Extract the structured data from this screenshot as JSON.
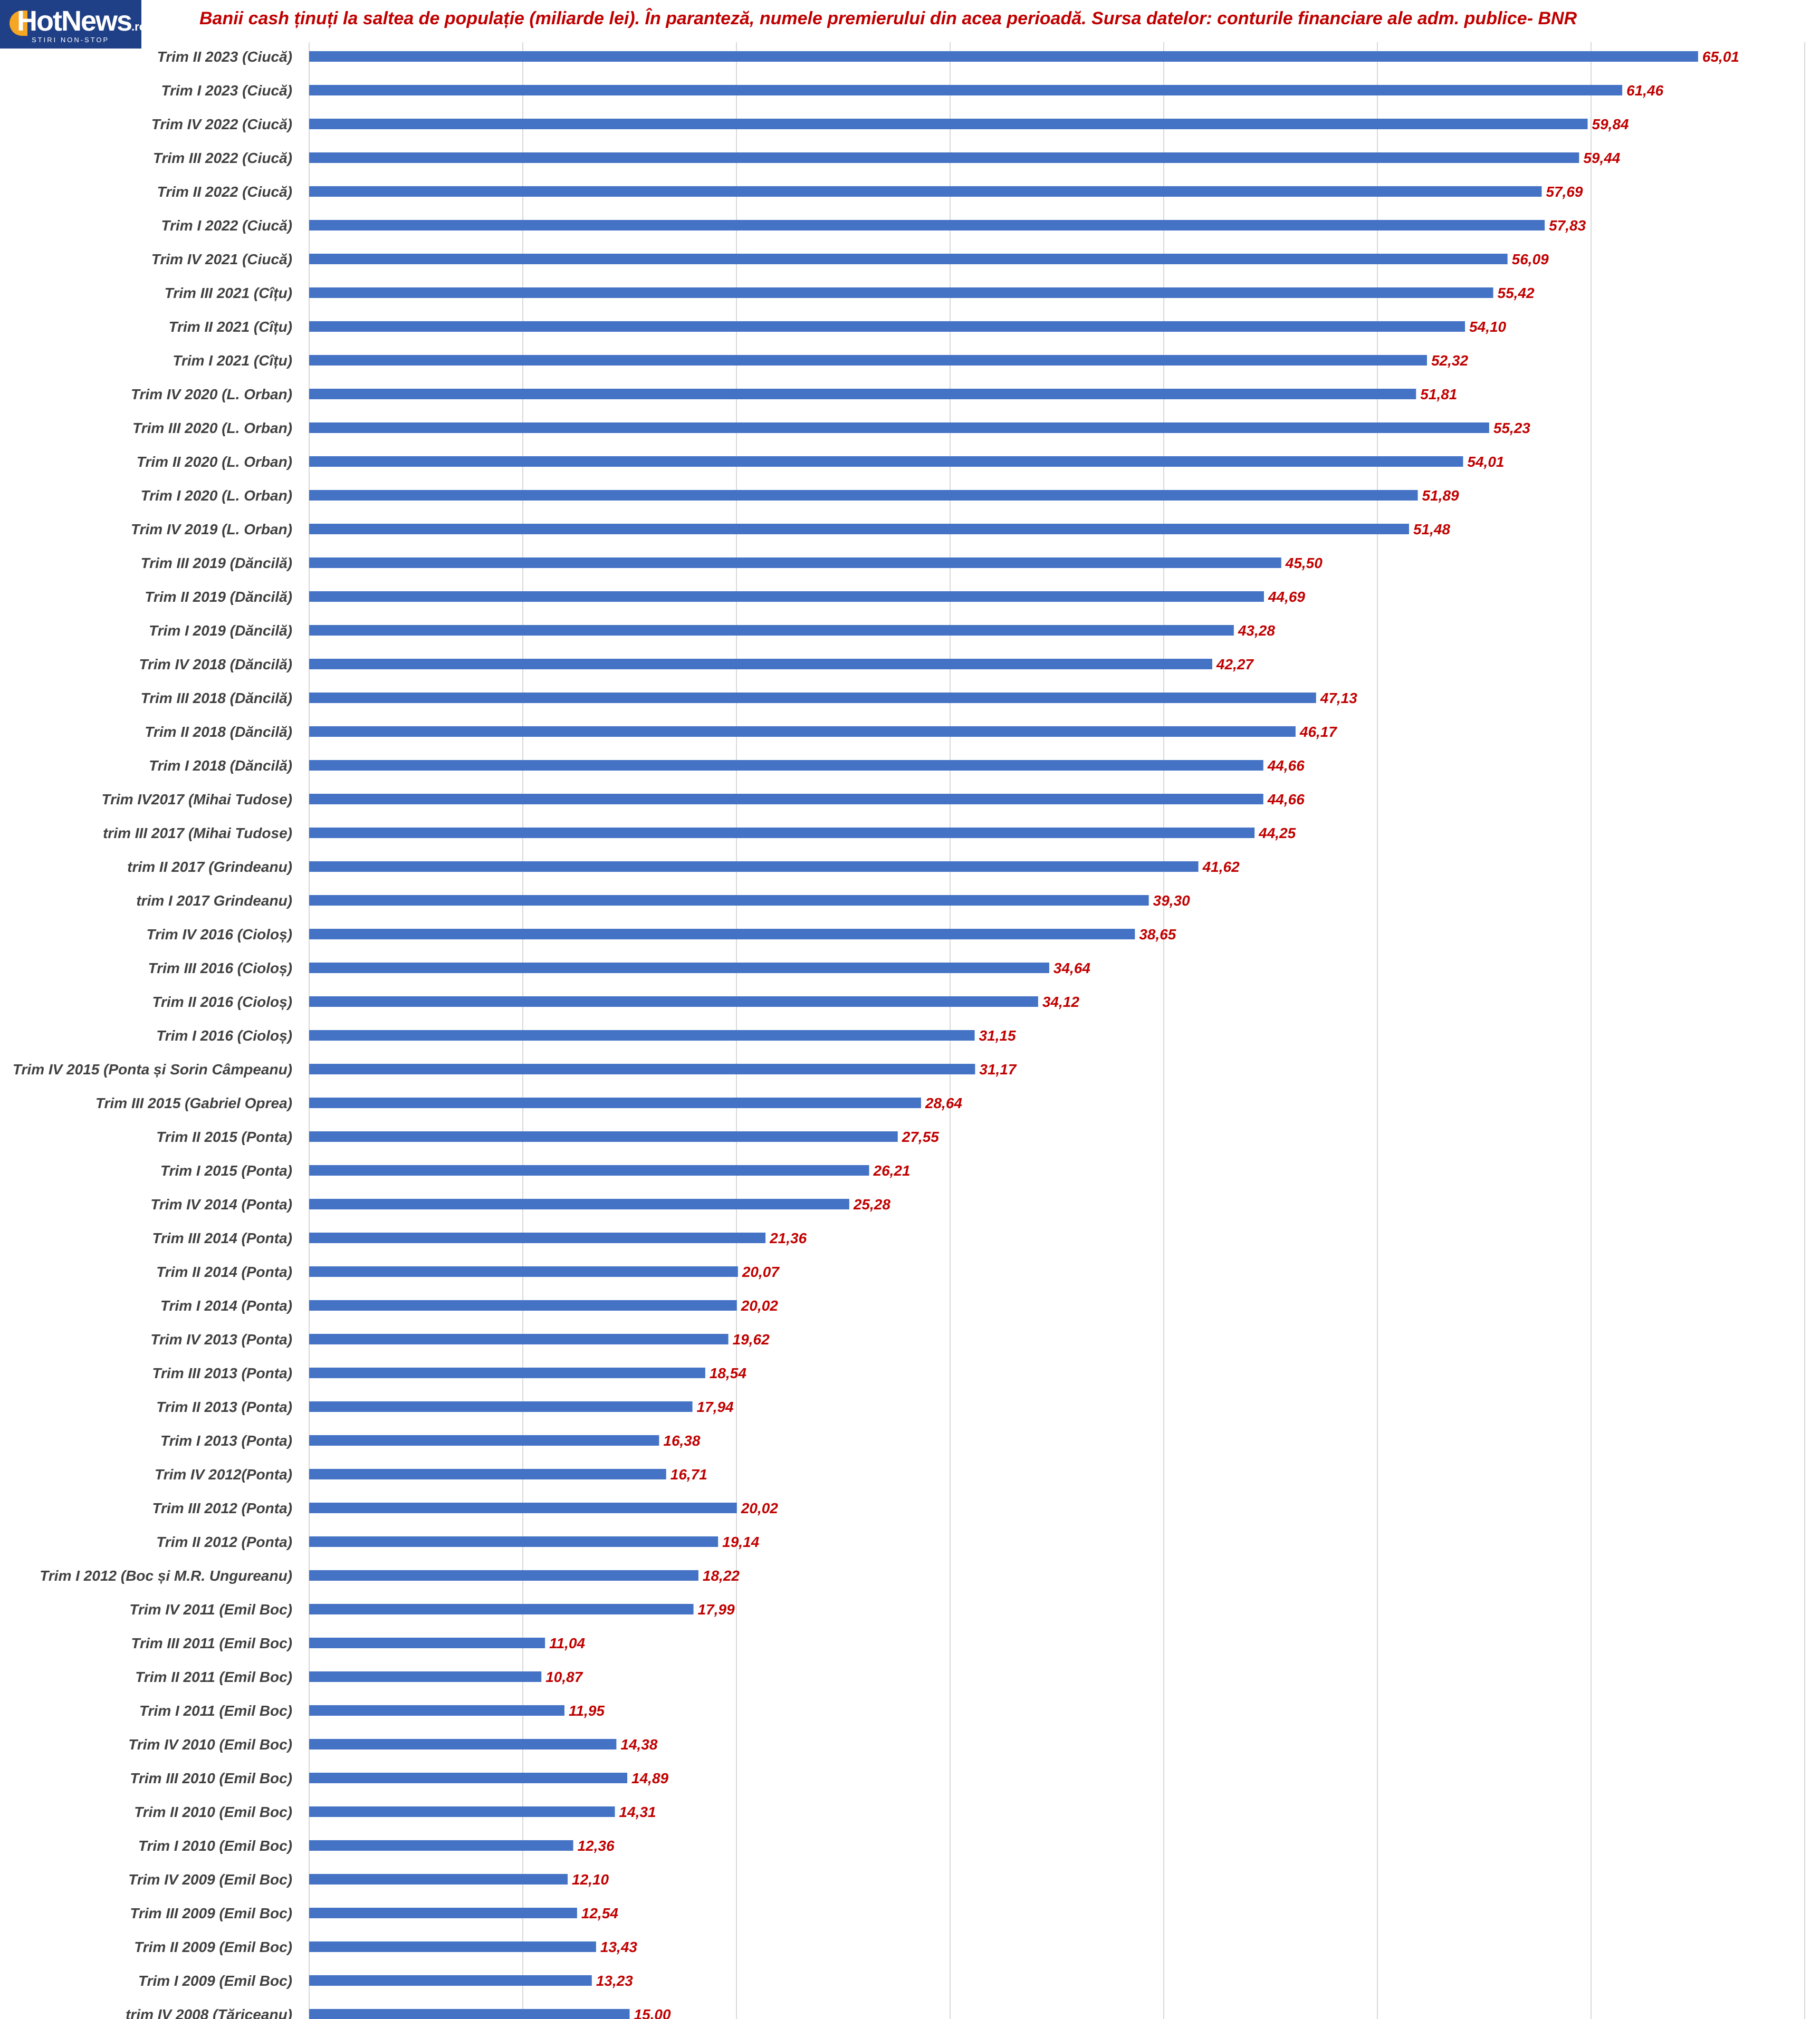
{
  "logo": {
    "brand": "HotNews",
    "suffix": ".ro",
    "tagline": "STIRI NON-STOP"
  },
  "chart_data": {
    "type": "bar",
    "orientation": "horizontal",
    "title": "Banii cash ținuți la saltea de populație (miliarde lei). În paranteză, numele premierului din acea perioadă. Sursa datelor: conturile  financiare ale adm. publice- BNR",
    "xlim": [
      0,
      70
    ],
    "grid": true,
    "bar_color": "#4472c4",
    "label_color": "#c00000",
    "categories": [
      "Trim II 2023 (Ciucă)",
      "Trim I 2023 (Ciucă)",
      "Trim IV 2022 (Ciucă)",
      "Trim III 2022 (Ciucă)",
      "Trim II 2022 (Ciucă)",
      "Trim I 2022 (Ciucă)",
      "Trim IV 2021 (Ciucă)",
      "Trim III 2021 (Cîțu)",
      "Trim II 2021 (Cîțu)",
      "Trim I 2021 (Cîțu)",
      "Trim IV 2020 (L. Orban)",
      "Trim III 2020 (L. Orban)",
      "Trim II 2020 (L. Orban)",
      "Trim I 2020 (L. Orban)",
      "Trim IV 2019 (L. Orban)",
      "Trim III 2019 (Dăncilă)",
      "Trim II 2019 (Dăncilă)",
      "Trim I 2019 (Dăncilă)",
      "Trim IV 2018  (Dăncilă)",
      "Trim III 2018  (Dăncilă)",
      "Trim II 2018  (Dăncilă)",
      "Trim I 2018 (Dăncilă)",
      "Trim IV2017 (Mihai Tudose)",
      "trim III 2017 (Mihai Tudose)",
      "trim II 2017 (Grindeanu)",
      "trim I 2017 Grindeanu)",
      "Trim IV 2016 (Cioloș)",
      "Trim III 2016 (Cioloș)",
      "Trim II 2016 (Cioloș)",
      "Trim I 2016 (Cioloș)",
      "Trim IV 2015 (Ponta și Sorin Câmpeanu)",
      "Trim III 2015 (Gabriel Oprea)",
      "Trim II 2015 (Ponta)",
      "Trim I 2015 (Ponta)",
      "Trim IV 2014 (Ponta)",
      "Trim III 2014  (Ponta)",
      "Trim II 2014 (Ponta)",
      "Trim I 2014 (Ponta)",
      "Trim IV 2013 (Ponta)",
      "Trim III 2013 (Ponta)",
      "Trim II 2013 (Ponta)",
      "Trim I 2013 (Ponta)",
      "Trim IV 2012(Ponta)",
      "Trim III 2012 (Ponta)",
      "Trim II 2012 (Ponta)",
      "Trim I 2012 (Boc și M.R. Ungureanu)",
      "Trim IV 2011  (Emil Boc)",
      "Trim III 2011  (Emil Boc)",
      "Trim II 2011  (Emil Boc)",
      "Trim I 2011  (Emil Boc)",
      "Trim IV 2010  (Emil Boc)",
      "Trim III 2010  (Emil Boc)",
      "Trim II 2010  (Emil Boc)",
      "Trim I 2010  (Emil Boc)",
      "Trim IV 2009  (Emil Boc)",
      "Trim III 2009  (Emil Boc)",
      "Trim II 2009  (Emil Boc)",
      "Trim I 2009 (Emil Boc)",
      "trim IV 2008  (Tăriceanu)"
    ],
    "values": [
      65.01,
      61.46,
      59.84,
      59.44,
      57.69,
      57.83,
      56.09,
      55.42,
      54.1,
      52.32,
      51.81,
      55.23,
      54.01,
      51.89,
      51.48,
      45.5,
      44.69,
      43.28,
      42.27,
      47.13,
      46.17,
      44.66,
      44.66,
      44.25,
      41.62,
      39.3,
      38.65,
      34.64,
      34.12,
      31.15,
      31.17,
      28.64,
      27.55,
      26.21,
      25.28,
      21.36,
      20.07,
      20.02,
      19.62,
      18.54,
      17.94,
      16.38,
      16.71,
      20.02,
      19.14,
      18.22,
      17.99,
      11.04,
      10.87,
      11.95,
      14.38,
      14.89,
      14.31,
      12.36,
      12.1,
      12.54,
      13.43,
      13.23,
      15.0
    ],
    "value_labels": [
      "65,01",
      "61,46",
      "59,84",
      "59,44",
      "57,69",
      "57,83",
      "56,09",
      "55,42",
      "54,10",
      "52,32",
      "51,81",
      "55,23",
      "54,01",
      "51,89",
      "51,48",
      "45,50",
      "44,69",
      "43,28",
      "42,27",
      "47,13",
      "46,17",
      "44,66",
      "44,66",
      "44,25",
      "41,62",
      "39,30",
      "38,65",
      "34,64",
      "34,12",
      "31,15",
      "31,17",
      "28,64",
      "27,55",
      "26,21",
      "25,28",
      "21,36",
      "20,07",
      "20,02",
      "19,62",
      "18,54",
      "17,94",
      "16,38",
      "16,71",
      "20,02",
      "19,14",
      "18,22",
      "17,99",
      "11,04",
      "10,87",
      "11,95",
      "14,38",
      "14,89",
      "14,31",
      "12,36",
      "12,10",
      "12,54",
      "13,43",
      "13,23",
      "15,00"
    ]
  }
}
